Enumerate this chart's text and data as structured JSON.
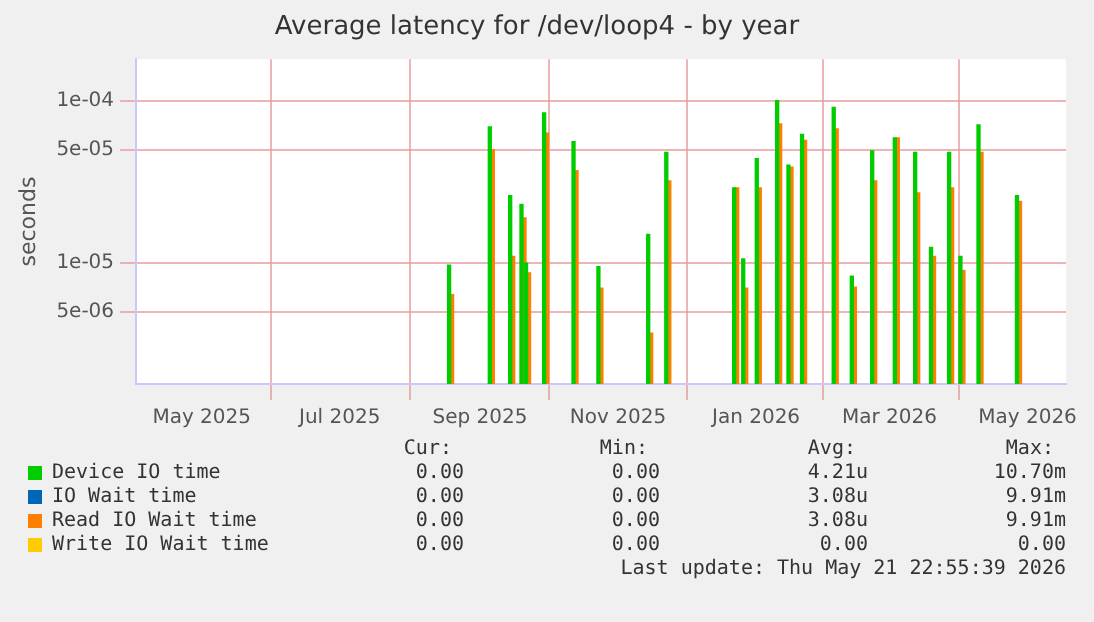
{
  "chart_data": {
    "type": "bar",
    "title": "Average latency for /dev/loop4 - by year",
    "ylabel": "seconds",
    "x": [
      "2025-08-19",
      "2025-09-06",
      "2025-09-15",
      "2025-09-20",
      "2025-09-22",
      "2025-09-30",
      "2025-10-13",
      "2025-10-24",
      "2025-11-15",
      "2025-11-23",
      "2025-12-23",
      "2025-12-27",
      "2026-01-02",
      "2026-01-11",
      "2026-01-16",
      "2026-01-22",
      "2026-02-05",
      "2026-02-13",
      "2026-02-22",
      "2026-03-04",
      "2026-03-13",
      "2026-03-20",
      "2026-03-28",
      "2026-04-02",
      "2026-04-10",
      "2026-04-27"
    ],
    "series": [
      {
        "name": "Device IO time",
        "color": "#00cc00",
        "values": [
          9.7e-06,
          6.9e-05,
          2.6e-05,
          2.3e-05,
          1e-05,
          8.4e-05,
          5.6e-05,
          9.5e-06,
          1.5e-05,
          4.8e-05,
          2.9e-05,
          1.06e-05,
          4.4e-05,
          0.0001,
          4e-05,
          6.2e-05,
          9.1e-05,
          8.3e-06,
          4.9e-05,
          5.9e-05,
          4.8e-05,
          1.25e-05,
          4.8e-05,
          1.1e-05,
          7.1e-05,
          2.6e-05
        ]
      },
      {
        "name": "IO Wait time",
        "color": "#0066b3",
        "values": [
          null,
          null,
          null,
          null,
          null,
          null,
          null,
          null,
          null,
          null,
          null,
          null,
          null,
          null,
          null,
          null,
          null,
          null,
          null,
          null,
          null,
          null,
          null,
          null,
          null,
          null
        ]
      },
      {
        "name": "Read IO Wait time",
        "color": "#ff8000",
        "values": [
          6.4e-06,
          5e-05,
          1.1e-05,
          1.9e-05,
          8.7e-06,
          6.3e-05,
          3.7e-05,
          7e-06,
          3.7e-06,
          3.2e-05,
          2.9e-05,
          7e-06,
          2.9e-05,
          7.2e-05,
          3.9e-05,
          5.7e-05,
          6.7e-05,
          7.1e-06,
          3.2e-05,
          5.9e-05,
          2.7e-05,
          1.1e-05,
          2.9e-05,
          9e-06,
          4.8e-05,
          2.4e-05
        ]
      },
      {
        "name": "Write IO Wait time",
        "color": "#ffcc00",
        "values": [
          null,
          null,
          null,
          null,
          null,
          null,
          null,
          null,
          null,
          null,
          null,
          null,
          null,
          null,
          null,
          null,
          null,
          null,
          null,
          null,
          null,
          null,
          null,
          null,
          null,
          null
        ]
      }
    ],
    "log": "y",
    "ylim": [
      1.8e-06,
      0.00018
    ],
    "yticks": [
      {
        "value": 5e-06,
        "label": "5e-06"
      },
      {
        "value": 1e-05,
        "label": "1e-05"
      },
      {
        "value": 5e-05,
        "label": "5e-05"
      },
      {
        "value": 0.0001,
        "label": "1e-04"
      }
    ],
    "xlim": [
      "2025-04-02",
      "2026-05-18"
    ],
    "xticks": [
      {
        "value": "2025-05-01",
        "label": "May 2025"
      },
      {
        "value": "2025-07-01",
        "label": "Jul 2025"
      },
      {
        "value": "2025-09-01",
        "label": "Sep 2025"
      },
      {
        "value": "2025-11-01",
        "label": "Nov 2025"
      },
      {
        "value": "2026-01-01",
        "label": "Jan 2026"
      },
      {
        "value": "2026-03-01",
        "label": "Mar 2026"
      },
      {
        "value": "2026-05-01",
        "label": "May 2026"
      }
    ],
    "grid": true,
    "legend": "bottom",
    "annotations": [
      "Cur:",
      "Min:",
      "Avg:",
      "Max:",
      "0.00",
      "0.00",
      "4.21u",
      "10.70m",
      "0.00",
      "0.00",
      "3.08u",
      "9.91m",
      "0.00",
      "0.00",
      "3.08u",
      "9.91m",
      "0.00",
      "0.00",
      "0.00",
      "0.00",
      "Last update: Thu May 21 22:55:39 2026"
    ]
  }
}
